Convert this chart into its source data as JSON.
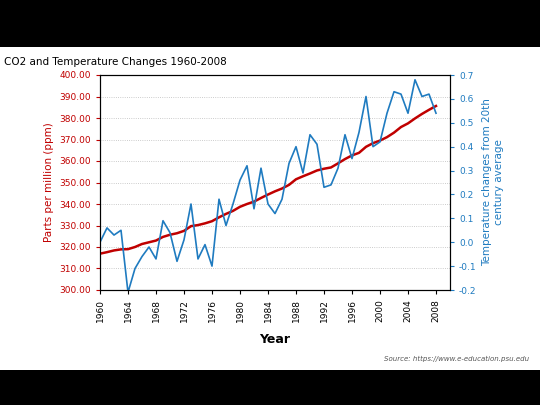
{
  "title": "CO2 and Temperature Changes 1960-2008",
  "source_text": "Source: https://www.e-education.psu.edu",
  "xlabel": "Year",
  "ylabel_left": "Parts per million (ppm)",
  "ylabel_right": "Temperature changes from 20th\ncentury average",
  "ylabel_left_color": "#C00000",
  "ylabel_right_color": "#1F7BC0",
  "x_ticks": [
    1960,
    1964,
    1968,
    1972,
    1976,
    1980,
    1984,
    1988,
    1992,
    1996,
    2000,
    2004,
    2008
  ],
  "ylim_left": [
    300,
    400
  ],
  "ylim_right": [
    -0.2,
    0.7
  ],
  "yticks_left": [
    300.0,
    310.0,
    320.0,
    330.0,
    340.0,
    350.0,
    360.0,
    370.0,
    380.0,
    390.0,
    400.0
  ],
  "yticks_right": [
    -0.2,
    -0.1,
    0,
    0.1,
    0.2,
    0.3,
    0.4,
    0.5,
    0.6,
    0.7
  ],
  "co2_line_color": "#C00000",
  "temp_line_color": "#1F7BC0",
  "panel_background": "#FFFFFF",
  "outer_background": "#000000",
  "slide_background": "#FFFFFF",
  "co2_data": {
    "years": [
      1960,
      1961,
      1962,
      1963,
      1964,
      1965,
      1966,
      1967,
      1968,
      1969,
      1970,
      1971,
      1972,
      1973,
      1974,
      1975,
      1976,
      1977,
      1978,
      1979,
      1980,
      1981,
      1982,
      1983,
      1984,
      1985,
      1986,
      1987,
      1988,
      1989,
      1990,
      1991,
      1992,
      1993,
      1994,
      1995,
      1996,
      1997,
      1998,
      1999,
      2000,
      2001,
      2002,
      2003,
      2004,
      2005,
      2006,
      2007,
      2008
    ],
    "values": [
      316.9,
      317.6,
      318.4,
      318.9,
      319.0,
      320.0,
      321.4,
      322.2,
      323.0,
      324.7,
      325.7,
      326.4,
      327.5,
      329.7,
      330.2,
      331.0,
      332.0,
      333.8,
      335.4,
      336.8,
      338.7,
      340.0,
      341.1,
      342.8,
      344.4,
      345.9,
      347.2,
      348.9,
      351.5,
      352.9,
      354.2,
      355.6,
      356.4,
      357.0,
      358.9,
      360.9,
      362.6,
      363.8,
      366.6,
      368.3,
      369.5,
      371.1,
      373.2,
      375.8,
      377.5,
      379.8,
      381.9,
      383.8,
      385.6
    ]
  },
  "temp_data": {
    "years": [
      1960,
      1961,
      1962,
      1963,
      1964,
      1965,
      1966,
      1967,
      1968,
      1969,
      1970,
      1971,
      1972,
      1973,
      1974,
      1975,
      1976,
      1977,
      1978,
      1979,
      1980,
      1981,
      1982,
      1983,
      1984,
      1985,
      1986,
      1987,
      1988,
      1989,
      1990,
      1991,
      1992,
      1993,
      1994,
      1995,
      1996,
      1997,
      1998,
      1999,
      2000,
      2001,
      2002,
      2003,
      2004,
      2005,
      2006,
      2007,
      2008
    ],
    "values": [
      0.0,
      0.06,
      0.03,
      0.05,
      -0.21,
      -0.11,
      -0.06,
      -0.02,
      -0.07,
      0.09,
      0.04,
      -0.08,
      0.01,
      0.16,
      -0.07,
      -0.01,
      -0.1,
      0.18,
      0.07,
      0.16,
      0.26,
      0.32,
      0.14,
      0.31,
      0.16,
      0.12,
      0.18,
      0.33,
      0.4,
      0.29,
      0.45,
      0.41,
      0.23,
      0.24,
      0.31,
      0.45,
      0.35,
      0.46,
      0.61,
      0.4,
      0.42,
      0.54,
      0.63,
      0.62,
      0.54,
      0.68,
      0.61,
      0.62,
      0.54
    ]
  }
}
